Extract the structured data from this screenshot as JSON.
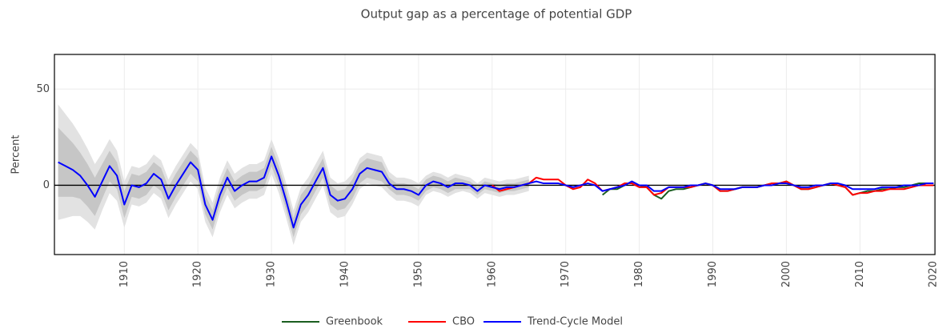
{
  "chart_data": {
    "type": "line",
    "title": "Output gap as a percentage of potential GDP",
    "y_label": "Percent",
    "xlim": [
      1900.5,
      2020.2
    ],
    "ylim": [
      -36,
      68
    ],
    "xticks": [
      1910,
      1920,
      1930,
      1940,
      1950,
      1960,
      1970,
      1980,
      1990,
      2000,
      2010,
      2020
    ],
    "yticks": [
      0,
      50
    ],
    "grid": true,
    "zero_line": true,
    "legend": "bottom",
    "bands": {
      "x": [
        1901,
        1902,
        1903,
        1904,
        1905,
        1906,
        1907,
        1908,
        1909,
        1910,
        1911,
        1912,
        1913,
        1914,
        1915,
        1916,
        1917,
        1918,
        1919,
        1920,
        1921,
        1922,
        1923,
        1924,
        1925,
        1926,
        1927,
        1928,
        1929,
        1930,
        1931,
        1932,
        1933,
        1934,
        1935,
        1936,
        1937,
        1938,
        1939,
        1940,
        1941,
        1942,
        1943,
        1944,
        1945,
        1946,
        1947,
        1948,
        1949,
        1950,
        1951,
        1952,
        1953,
        1954,
        1955,
        1956,
        1957,
        1958,
        1959,
        1960,
        1961,
        1962,
        1963,
        1964,
        1965
      ],
      "outer": {
        "color": "#e2e2e2",
        "upper": [
          42,
          37,
          32,
          26,
          19,
          11,
          17,
          24,
          18,
          2,
          10,
          9,
          11,
          16,
          13,
          3,
          10,
          16,
          22,
          18,
          -1,
          -9,
          4,
          13,
          6,
          9,
          11,
          11,
          13,
          24,
          14,
          1,
          -13,
          -1,
          4,
          11,
          18,
          4,
          1,
          2,
          6,
          14,
          17,
          16,
          15,
          7,
          4,
          4,
          3,
          1,
          5,
          7,
          6,
          4,
          6,
          5,
          4,
          1,
          4,
          3,
          2,
          3,
          3,
          4,
          5
        ],
        "lower": [
          -18,
          -17,
          -16,
          -16,
          -19,
          -23,
          -13,
          -4,
          -8,
          -22,
          -10,
          -11,
          -9,
          -4,
          -7,
          -17,
          -10,
          -4,
          2,
          -2,
          -19,
          -27,
          -14,
          -5,
          -12,
          -9,
          -7,
          -7,
          -5,
          6,
          -4,
          -17,
          -31,
          -19,
          -14,
          -7,
          0,
          -14,
          -17,
          -16,
          -10,
          -2,
          1,
          0,
          -1,
          -5,
          -8,
          -8,
          -9,
          -11,
          -5,
          -3,
          -4,
          -6,
          -4,
          -3,
          -4,
          -7,
          -4,
          -5,
          -6,
          -5,
          -5,
          -4,
          -3
        ]
      },
      "inner": {
        "color": "#c6c6c6",
        "upper": [
          30,
          26,
          22,
          17,
          11,
          4,
          11,
          18,
          12,
          -3,
          6,
          5,
          7,
          12,
          9,
          -1,
          6,
          12,
          18,
          14,
          -5,
          -13,
          0,
          9,
          2,
          5,
          7,
          7,
          9,
          20,
          10,
          -3,
          -17,
          -5,
          0,
          7,
          14,
          0,
          -3,
          -2,
          3,
          11,
          14,
          13,
          12,
          4,
          1,
          1,
          0,
          -2,
          3,
          5,
          4,
          2,
          4,
          3,
          2,
          -1,
          2,
          1,
          0,
          1,
          1,
          2,
          3
        ],
        "lower": [
          -6,
          -6,
          -6,
          -7,
          -11,
          -16,
          -7,
          2,
          -2,
          -17,
          -6,
          -7,
          -5,
          0,
          -3,
          -13,
          -6,
          0,
          6,
          2,
          -15,
          -23,
          -10,
          -1,
          -8,
          -5,
          -3,
          -3,
          -1,
          10,
          0,
          -13,
          -27,
          -15,
          -10,
          -3,
          4,
          -10,
          -13,
          -12,
          -7,
          1,
          4,
          3,
          2,
          -2,
          -5,
          -5,
          -6,
          -8,
          -3,
          -1,
          -2,
          -4,
          -2,
          -2,
          -2,
          -5,
          -2,
          -3,
          -4,
          -3,
          -3,
          -2,
          -1
        ]
      }
    },
    "series": [
      {
        "name": "Greenbook",
        "color": "#1b5e20",
        "x": [
          1975,
          1976,
          1977,
          1978,
          1979,
          1980,
          1981,
          1982,
          1983,
          1984,
          1985,
          1986,
          1987,
          1988,
          1989,
          1990,
          1991,
          1992,
          1993,
          1994,
          1995,
          1996,
          1997,
          1998,
          1999,
          2000,
          2001,
          2002,
          2003,
          2004,
          2005,
          2006,
          2007,
          2008,
          2009,
          2010,
          2011,
          2012,
          2013,
          2014,
          2015,
          2016,
          2017,
          2018,
          2019,
          2020
        ],
        "values": [
          -5,
          -2,
          -2,
          0,
          2,
          0,
          -1,
          -5,
          -7,
          -3,
          -2,
          -2,
          -1,
          0,
          1,
          0,
          -3,
          -3,
          -2,
          -1,
          -1,
          -1,
          0,
          1,
          1,
          2,
          0,
          -2,
          -2,
          -1,
          0,
          1,
          0,
          -1,
          -5,
          -4,
          -3,
          -3,
          -2,
          -2,
          -1,
          -1,
          0,
          1,
          1,
          1
        ]
      },
      {
        "name": "CBO",
        "color": "#ff0000",
        "x": [
          1960,
          1961,
          1962,
          1963,
          1964,
          1965,
          1966,
          1967,
          1968,
          1969,
          1970,
          1971,
          1972,
          1973,
          1974,
          1975,
          1976,
          1977,
          1978,
          1979,
          1980,
          1981,
          1982,
          1983,
          1984,
          1985,
          1986,
          1987,
          1988,
          1989,
          1990,
          1991,
          1992,
          1993,
          1994,
          1995,
          1996,
          1997,
          1998,
          1999,
          2000,
          2001,
          2002,
          2003,
          2004,
          2005,
          2006,
          2007,
          2008,
          2009,
          2010,
          2011,
          2012,
          2013,
          2014,
          2015,
          2016,
          2017,
          2018,
          2019,
          2020
        ],
        "values": [
          0,
          -3,
          -2,
          -1,
          0,
          1,
          4,
          3,
          3,
          3,
          0,
          -2,
          -1,
          3,
          1,
          -3,
          -2,
          -1,
          1,
          1,
          -1,
          -1,
          -5,
          -4,
          -1,
          -1,
          -1,
          -1,
          0,
          1,
          0,
          -3,
          -3,
          -2,
          -1,
          -1,
          -1,
          0,
          1,
          1,
          2,
          0,
          -2,
          -2,
          -1,
          0,
          1,
          0,
          -1,
          -5,
          -4,
          -4,
          -3,
          -3,
          -2,
          -2,
          -2,
          -1,
          0,
          0,
          0
        ]
      },
      {
        "name": "Trend-Cycle Model",
        "color": "#0000ff",
        "x": [
          1901,
          1902,
          1903,
          1904,
          1905,
          1906,
          1907,
          1908,
          1909,
          1910,
          1911,
          1912,
          1913,
          1914,
          1915,
          1916,
          1917,
          1918,
          1919,
          1920,
          1921,
          1922,
          1923,
          1924,
          1925,
          1926,
          1927,
          1928,
          1929,
          1930,
          1931,
          1932,
          1933,
          1934,
          1935,
          1936,
          1937,
          1938,
          1939,
          1940,
          1941,
          1942,
          1943,
          1944,
          1945,
          1946,
          1947,
          1948,
          1949,
          1950,
          1951,
          1952,
          1953,
          1954,
          1955,
          1956,
          1957,
          1958,
          1959,
          1960,
          1961,
          1962,
          1963,
          1964,
          1965,
          1966,
          1967,
          1968,
          1969,
          1970,
          1971,
          1972,
          1973,
          1974,
          1975,
          1976,
          1977,
          1978,
          1979,
          1980,
          1981,
          1982,
          1983,
          1984,
          1985,
          1986,
          1987,
          1988,
          1989,
          1990,
          1991,
          1992,
          1993,
          1994,
          1995,
          1996,
          1997,
          1998,
          1999,
          2000,
          2001,
          2002,
          2003,
          2004,
          2005,
          2006,
          2007,
          2008,
          2009,
          2010,
          2011,
          2012,
          2013,
          2014,
          2015,
          2016,
          2017,
          2018,
          2019,
          2020
        ],
        "values": [
          12,
          10,
          8,
          5,
          0,
          -6,
          2,
          10,
          5,
          -10,
          0,
          -1,
          1,
          6,
          3,
          -7,
          0,
          6,
          12,
          8,
          -10,
          -18,
          -5,
          4,
          -3,
          0,
          2,
          2,
          4,
          15,
          5,
          -8,
          -22,
          -10,
          -5,
          2,
          9,
          -5,
          -8,
          -7,
          -2,
          6,
          9,
          8,
          7,
          1,
          -2,
          -2,
          -3,
          -5,
          0,
          2,
          1,
          -1,
          1,
          1,
          0,
          -3,
          0,
          -1,
          -2,
          -1,
          -1,
          0,
          1,
          2,
          1,
          1,
          1,
          0,
          -1,
          0,
          1,
          0,
          -3,
          -2,
          -1,
          0,
          2,
          0,
          0,
          -3,
          -3,
          -1,
          -1,
          -1,
          0,
          0,
          1,
          0,
          -2,
          -2,
          -2,
          -1,
          -1,
          -1,
          0,
          0,
          1,
          1,
          0,
          -1,
          -1,
          0,
          0,
          1,
          1,
          0,
          -2,
          -2,
          -2,
          -2,
          -1,
          -1,
          -1,
          0,
          0,
          0,
          1,
          1
        ]
      }
    ]
  }
}
